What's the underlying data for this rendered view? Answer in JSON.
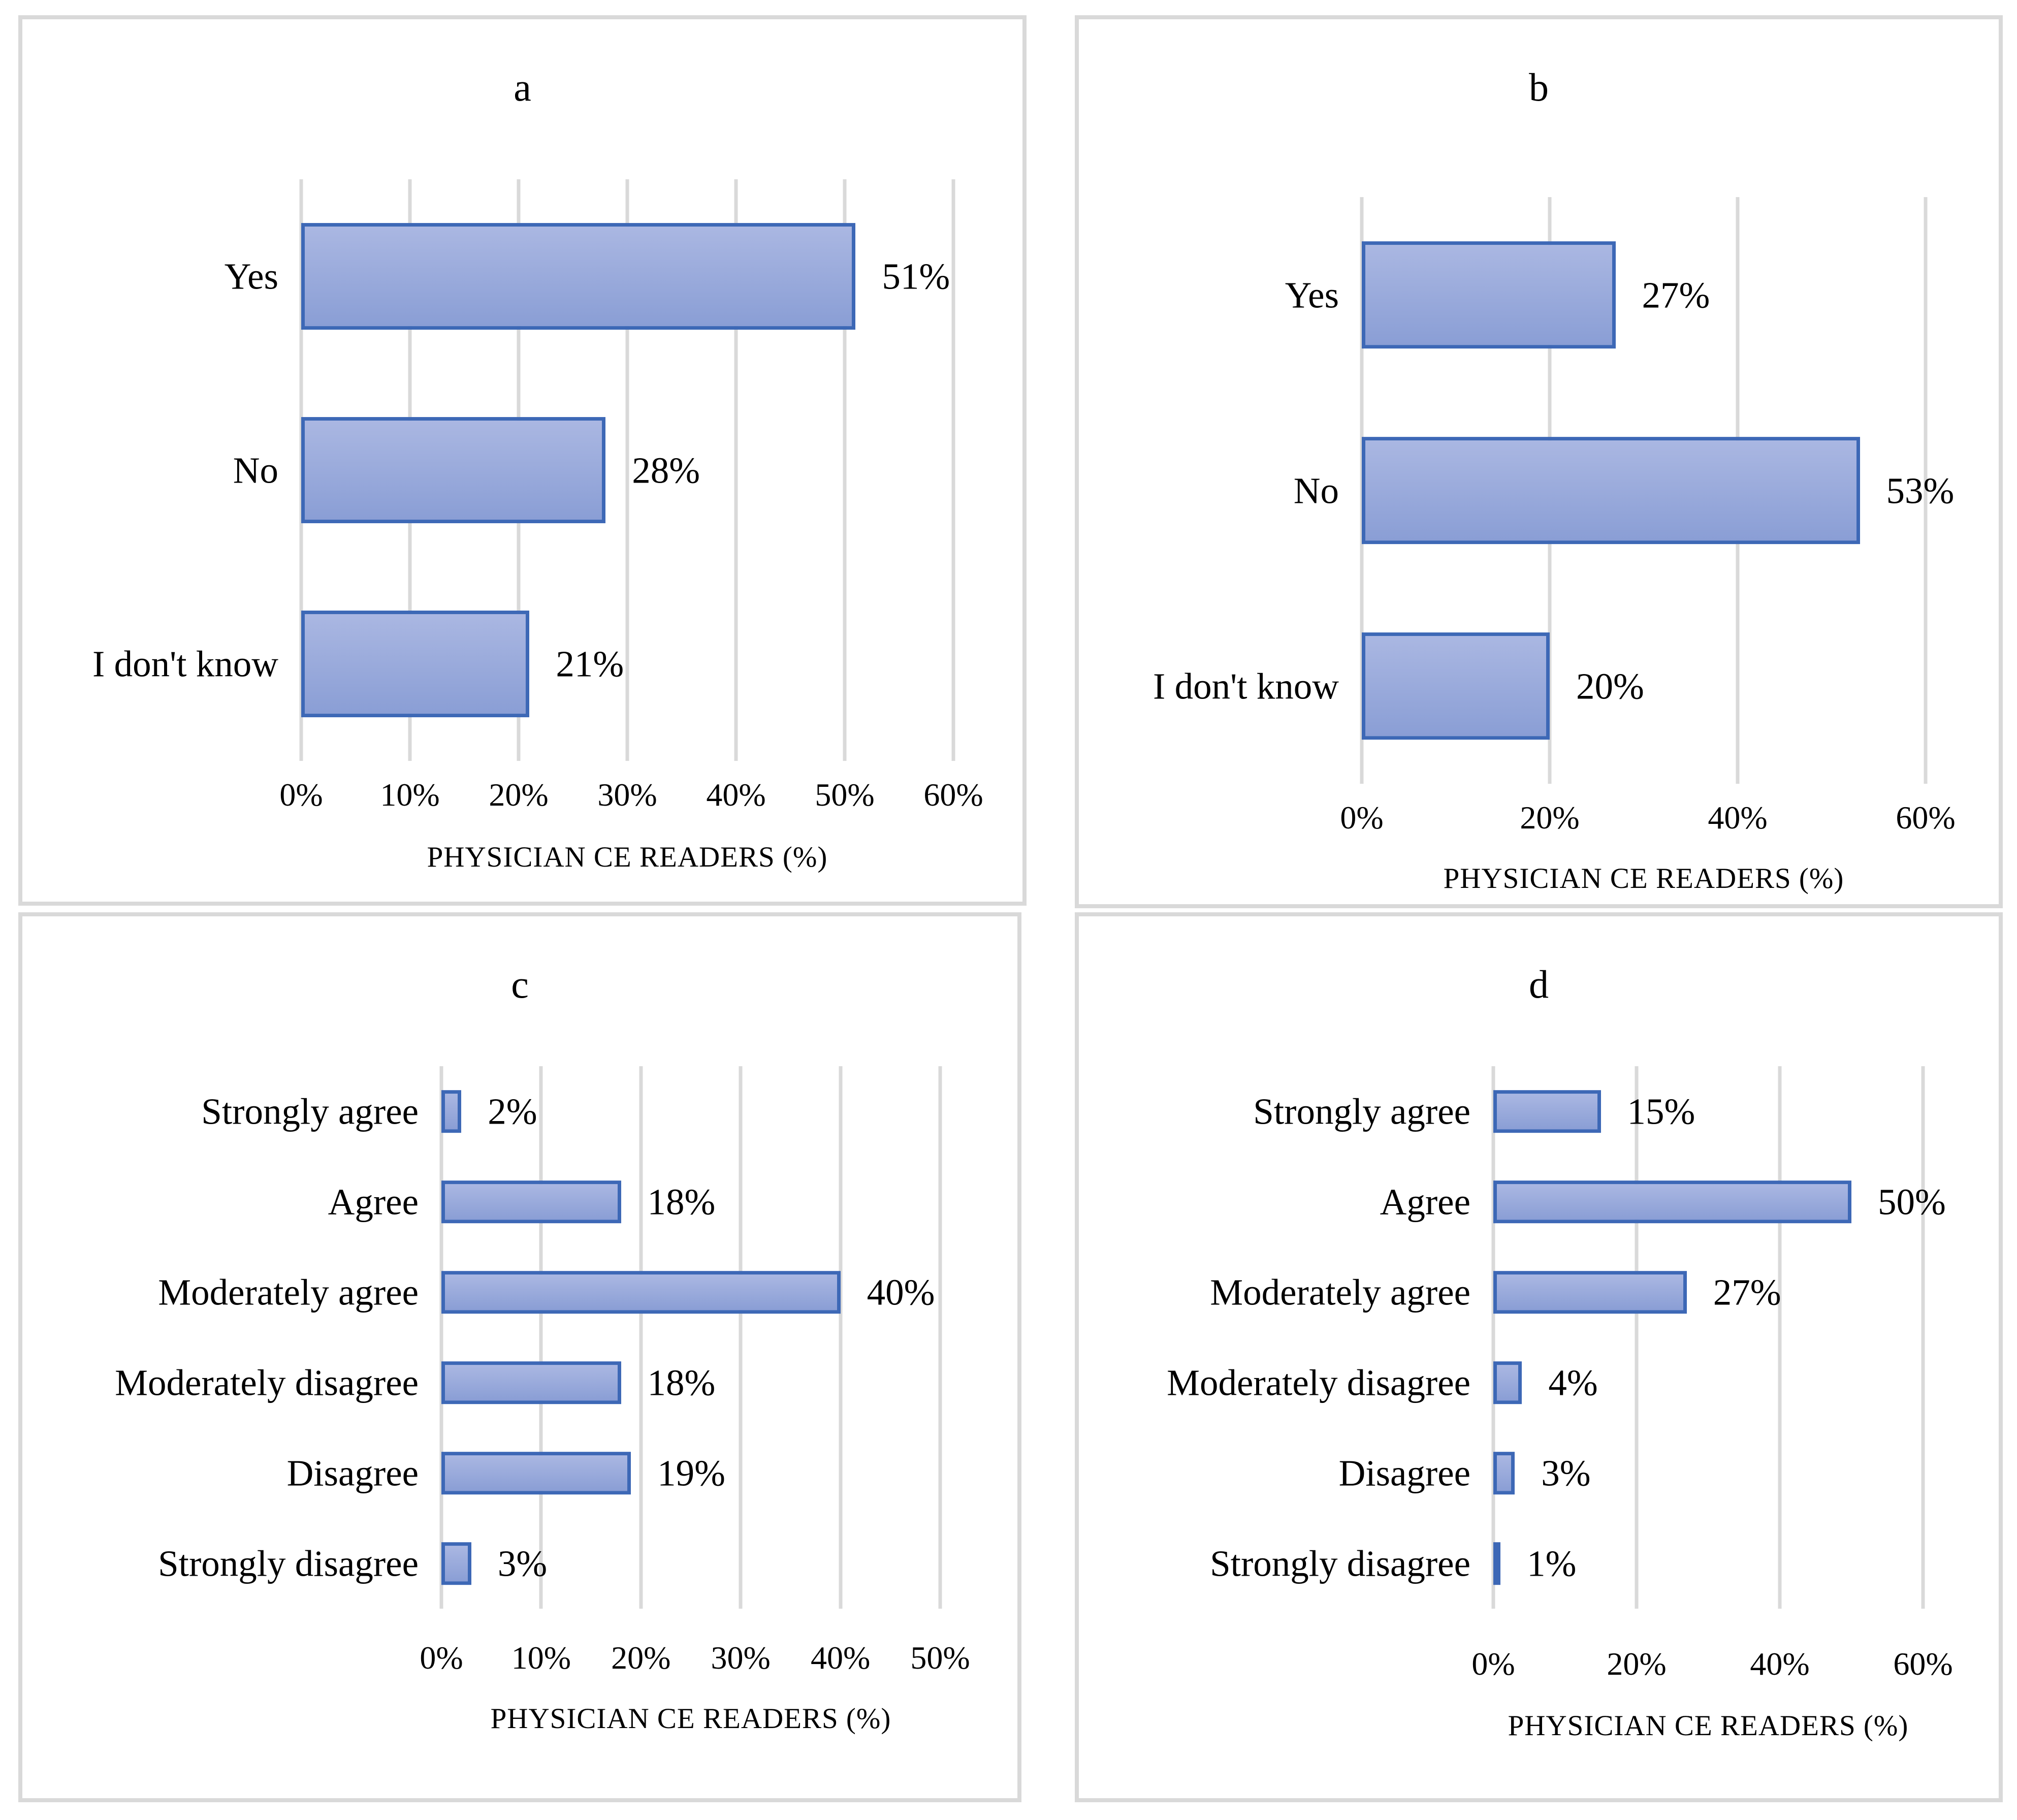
{
  "figure": {
    "description": "Four-panel horizontal bar chart figure",
    "panel_labels": [
      "a",
      "b",
      "c",
      "d"
    ]
  },
  "colors": {
    "bar_fill_top": "#aab7e2",
    "bar_fill_bottom": "#8a9ed5",
    "bar_border": "#3d68b6",
    "gridline": "#d9d9d9",
    "panel_border": "#d9d9d9",
    "text": "#000000",
    "background": "#ffffff"
  },
  "chart_data": [
    {
      "type": "bar",
      "orientation": "horizontal",
      "title": "a",
      "categories": [
        "Yes",
        "No",
        "I don't know"
      ],
      "values": [
        51,
        28,
        21
      ],
      "value_labels": [
        "51%",
        "28%",
        "21%"
      ],
      "xlabel": "PHYSICIAN CE READERS (%)",
      "xlim": [
        0,
        60
      ],
      "xticks": [
        "0%",
        "10%",
        "20%",
        "30%",
        "40%",
        "50%",
        "60%"
      ],
      "grid": "vertical",
      "legend": "none"
    },
    {
      "type": "bar",
      "orientation": "horizontal",
      "title": "b",
      "categories": [
        "Yes",
        "No",
        "I don't know"
      ],
      "values": [
        27,
        53,
        20
      ],
      "value_labels": [
        "27%",
        "53%",
        "20%"
      ],
      "xlabel": "PHYSICIAN CE READERS (%)",
      "xlim": [
        0,
        60
      ],
      "xticks": [
        "0%",
        "20%",
        "40%",
        "60%"
      ],
      "grid": "vertical",
      "legend": "none"
    },
    {
      "type": "bar",
      "orientation": "horizontal",
      "title": "c",
      "categories": [
        "Strongly agree",
        "Agree",
        "Moderately agree",
        "Moderately disagree",
        "Disagree",
        "Strongly disagree"
      ],
      "values": [
        2,
        18,
        40,
        18,
        19,
        3
      ],
      "value_labels": [
        "2%",
        "18%",
        "40%",
        "18%",
        "19%",
        "3%"
      ],
      "xlabel": "PHYSICIAN CE READERS (%)",
      "xlim": [
        0,
        50
      ],
      "xticks": [
        "0%",
        "10%",
        "20%",
        "30%",
        "40%",
        "50%"
      ],
      "grid": "vertical",
      "legend": "none"
    },
    {
      "type": "bar",
      "orientation": "horizontal",
      "title": "d",
      "categories": [
        "Strongly agree",
        "Agree",
        "Moderately agree",
        "Moderately disagree",
        "Disagree",
        "Strongly disagree"
      ],
      "values": [
        15,
        50,
        27,
        4,
        3,
        1
      ],
      "value_labels": [
        "15%",
        "50%",
        "27%",
        "4%",
        "3%",
        "1%"
      ],
      "xlabel": "PHYSICIAN CE READERS (%)",
      "xlim": [
        0,
        60
      ],
      "xticks": [
        "0%",
        "20%",
        "40%",
        "60%"
      ],
      "grid": "vertical",
      "legend": "none"
    }
  ]
}
